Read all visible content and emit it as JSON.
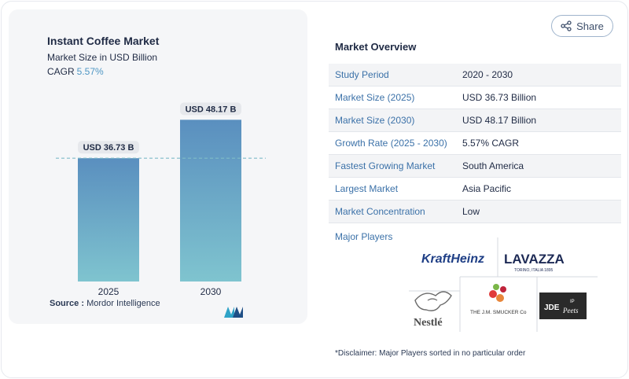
{
  "share": {
    "label": "Share",
    "icon": "share-icon"
  },
  "chart": {
    "title": "Instant Coffee Market",
    "subtitle": "Market Size in USD Billion",
    "cagr_label": "CAGR",
    "cagr_value": "5.57%"
  },
  "chart_data": {
    "type": "bar",
    "categories": [
      "2025",
      "2030"
    ],
    "values": [
      36.73,
      48.17
    ],
    "data_labels": [
      "USD 36.73 B",
      "USD 48.17 B"
    ],
    "title": "Instant Coffee Market",
    "ylabel": "Market Size in USD Billion",
    "xlabel": "",
    "ylim": [
      0,
      52
    ],
    "reference_line": 36.73,
    "colors": {
      "bar_top": "#5a8fbf",
      "bar_bottom": "#7fc4cf",
      "ref_line": "#7fbcc8"
    }
  },
  "source": {
    "label": "Source :",
    "value": "Mordor Intelligence"
  },
  "overview": {
    "title": "Market Overview",
    "rows": [
      {
        "key": "Study Period",
        "value": "2020 - 2030"
      },
      {
        "key": "Market Size (2025)",
        "value": "USD 36.73 Billion"
      },
      {
        "key": "Market Size (2030)",
        "value": "USD 48.17 Billion"
      },
      {
        "key": "Growth Rate (2025 - 2030)",
        "value": "5.57% CAGR"
      },
      {
        "key": "Fastest Growing Market",
        "value": "South America"
      },
      {
        "key": "Largest Market",
        "value": "Asia Pacific"
      },
      {
        "key": "Market Concentration",
        "value": "Low"
      }
    ]
  },
  "players": {
    "title": "Major Players",
    "logos": [
      {
        "name": "Kraft Heinz",
        "text": "KraftHeinz"
      },
      {
        "name": "Lavazza",
        "text": "LAVAZZA",
        "tagline": "TORINO, ITALIA 1895"
      },
      {
        "name": "Nestle",
        "text": "Nestlé"
      },
      {
        "name": "The J.M. Smucker Co",
        "text": "THE J.M. SMUCKER Co"
      },
      {
        "name": "JDE Peet's",
        "text_a": "JDE",
        "text_b": "Peets",
        "sup": "IP"
      }
    ]
  },
  "disclaimer": "*Disclaimer: Major Players sorted in no particular order"
}
